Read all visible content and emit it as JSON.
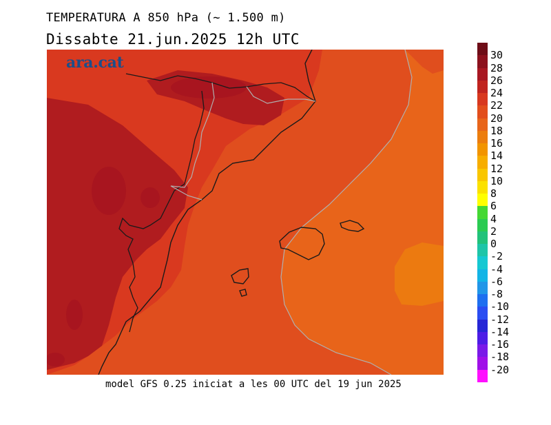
{
  "title": "TEMPERATURA A 850 hPa (~ 1.500 m)",
  "subtitle": "Dissabte   21.jun.2025 12h UTC",
  "logo": "ara.cat",
  "footer": "model GFS 0.25 iniciat a les 00 UTC del 19 jun 2025",
  "colorbar": {
    "labels": [
      "30",
      "28",
      "26",
      "24",
      "22",
      "20",
      "18",
      "16",
      "14",
      "12",
      "10",
      "8",
      "6",
      "4",
      "2",
      "0",
      "-2",
      "-4",
      "-6",
      "-8",
      "-10",
      "-12",
      "-14",
      "-16",
      "-18",
      "-20"
    ],
    "colors": [
      "#6e0d17",
      "#8c111d",
      "#a81722",
      "#c0241f",
      "#d8381f",
      "#e24e1c",
      "#e8651a",
      "#ec7d0e",
      "#f29400",
      "#f7ad00",
      "#f9c600",
      "#fbe100",
      "#ffff00",
      "#44d833",
      "#2acb52",
      "#22c27a",
      "#1ec5a8",
      "#15c8d2",
      "#12b4e6",
      "#2196e8",
      "#1e6ff0",
      "#2a4df2",
      "#2626d6",
      "#4d1de6",
      "#7a1ae8",
      "#a010e8",
      "#ff10ff"
    ]
  },
  "map": {
    "colors": {
      "t24": "#b01c1f",
      "t22": "#d9391f",
      "t20": "#e04e1e",
      "t18": "#e8641a",
      "t16": "#ec7a10",
      "t26": "#a8151f",
      "sea_border": "#b0b0b0",
      "coast": "#1a1a1a"
    }
  }
}
